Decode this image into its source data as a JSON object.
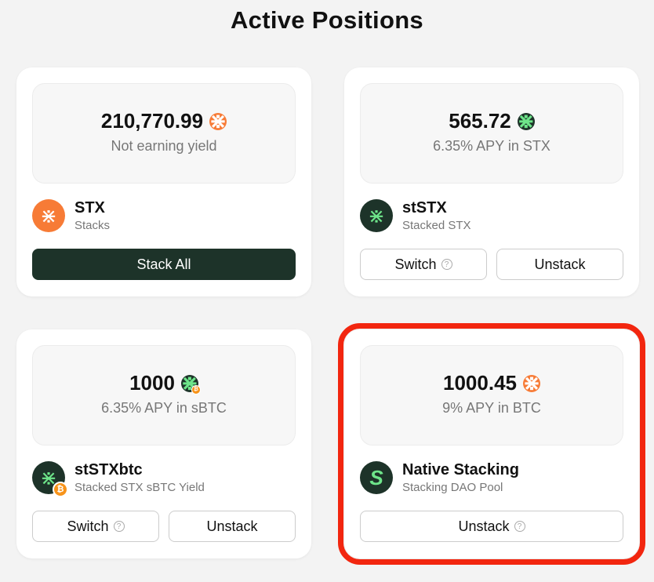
{
  "title": "Active Positions",
  "positions": [
    {
      "amount": "210,770.99",
      "yield": "Not earning yield",
      "name": "STX",
      "desc": "Stacks",
      "token_icon": "stx-icon",
      "buttons": [
        "Stack All"
      ]
    },
    {
      "amount": "565.72",
      "yield": "6.35% APY in STX",
      "name": "stSTX",
      "desc": "Stacked STX",
      "token_icon": "ststx-icon",
      "buttons": [
        "Switch",
        "Unstack"
      ]
    },
    {
      "amount": "1000",
      "yield": "6.35% APY in sBTC",
      "name": "stSTXbtc",
      "desc": "Stacked STX sBTC Yield",
      "token_icon": "ststxbtc-icon",
      "buttons": [
        "Switch",
        "Unstack"
      ]
    },
    {
      "amount": "1000.45",
      "yield": "9% APY in BTC",
      "name": "Native Stacking",
      "desc": "Stacking DAO Pool",
      "token_icon": "stx-icon",
      "buttons": [
        "Unstack"
      ]
    }
  ],
  "colors": {
    "accent": "#1d3329",
    "stx": "#f77b36",
    "highlight": "#f2260f",
    "btc": "#f7931a"
  }
}
